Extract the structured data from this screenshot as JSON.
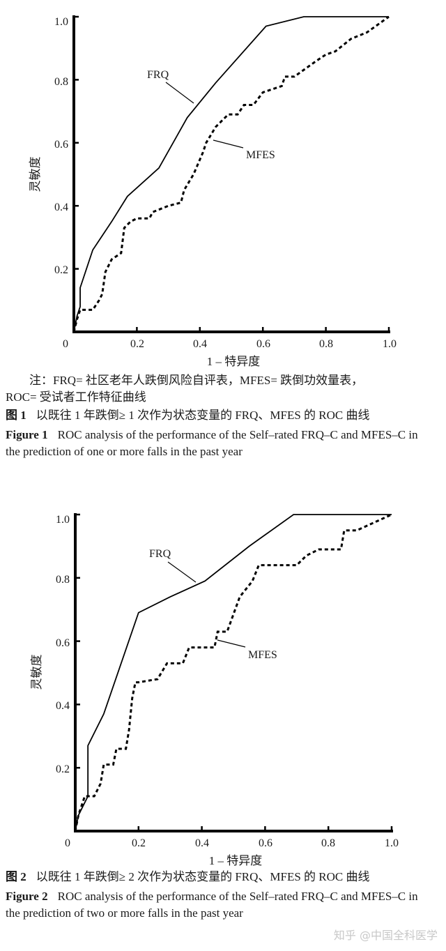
{
  "chart_data": [
    {
      "type": "line",
      "title": "ROC analysis — one or more falls in the past year",
      "xlabel": "1 – 特异度",
      "ylabel": "灵敏度",
      "xlim": [
        0,
        1.0
      ],
      "ylim": [
        0,
        1.0
      ],
      "xticks": [
        "0",
        "0.2",
        "0.4",
        "0.6",
        "0.8",
        "1.0"
      ],
      "yticks": [
        "0.2",
        "0.4",
        "0.6",
        "0.8",
        "1.0"
      ],
      "grid": false,
      "legend": "inline annotations",
      "series": [
        {
          "name": "FRQ",
          "style": "solid",
          "x": [
            0,
            0.01,
            0.02,
            0.02,
            0.06,
            0.12,
            0.17,
            0.27,
            0.36,
            0.45,
            0.61,
            0.73,
            1.0
          ],
          "y": [
            0,
            0.05,
            0.08,
            0.14,
            0.26,
            0.35,
            0.43,
            0.52,
            0.68,
            0.79,
            0.97,
            1.0,
            1.0
          ]
        },
        {
          "name": "MFES",
          "style": "dashed",
          "x": [
            0,
            0.01,
            0.02,
            0.06,
            0.08,
            0.09,
            0.1,
            0.12,
            0.15,
            0.16,
            0.18,
            0.2,
            0.24,
            0.25,
            0.3,
            0.34,
            0.35,
            0.38,
            0.41,
            0.42,
            0.45,
            0.49,
            0.52,
            0.54,
            0.57,
            0.6,
            0.63,
            0.66,
            0.67,
            0.7,
            0.77,
            0.8,
            0.83,
            0.88,
            0.93,
            1.0
          ],
          "y": [
            0,
            0.04,
            0.07,
            0.07,
            0.1,
            0.12,
            0.19,
            0.23,
            0.25,
            0.33,
            0.35,
            0.36,
            0.36,
            0.38,
            0.4,
            0.41,
            0.45,
            0.5,
            0.57,
            0.6,
            0.65,
            0.69,
            0.69,
            0.72,
            0.72,
            0.76,
            0.77,
            0.78,
            0.81,
            0.81,
            0.86,
            0.88,
            0.89,
            0.93,
            0.95,
            1.0
          ]
        }
      ],
      "annotations": [
        "FRQ",
        "MFES"
      ]
    },
    {
      "type": "line",
      "title": "ROC analysis — two or more falls in the past year",
      "xlabel": "1 – 特异度",
      "ylabel": "灵敏度",
      "xlim": [
        0,
        1.0
      ],
      "ylim": [
        0,
        1.0
      ],
      "xticks": [
        "0",
        "0.2",
        "0.4",
        "0.6",
        "0.8",
        "1.0"
      ],
      "yticks": [
        "0.2",
        "0.4",
        "0.6",
        "0.8",
        "1.0"
      ],
      "grid": false,
      "legend": "inline annotations",
      "series": [
        {
          "name": "FRQ",
          "style": "solid",
          "x": [
            0,
            0.01,
            0.04,
            0.04,
            0.09,
            0.2,
            0.3,
            0.41,
            0.55,
            0.69,
            1.0
          ],
          "y": [
            0,
            0.05,
            0.11,
            0.27,
            0.37,
            0.69,
            0.74,
            0.79,
            0.9,
            1.0,
            1.0
          ]
        },
        {
          "name": "MFES",
          "style": "dashed",
          "x": [
            0,
            0.01,
            0.03,
            0.06,
            0.08,
            0.09,
            0.12,
            0.13,
            0.16,
            0.17,
            0.18,
            0.19,
            0.2,
            0.26,
            0.29,
            0.34,
            0.36,
            0.38,
            0.44,
            0.45,
            0.48,
            0.52,
            0.56,
            0.58,
            0.6,
            0.7,
            0.73,
            0.77,
            0.84,
            0.85,
            0.89,
            1.0
          ],
          "y": [
            0,
            0.05,
            0.11,
            0.11,
            0.15,
            0.21,
            0.21,
            0.26,
            0.26,
            0.32,
            0.42,
            0.47,
            0.47,
            0.48,
            0.53,
            0.53,
            0.58,
            0.58,
            0.58,
            0.63,
            0.63,
            0.74,
            0.79,
            0.84,
            0.84,
            0.84,
            0.87,
            0.89,
            0.89,
            0.95,
            0.95,
            1.0
          ]
        }
      ],
      "annotations": [
        "FRQ",
        "MFES"
      ]
    }
  ],
  "figure1": {
    "y_axis_label": "灵敏度",
    "x_axis_label": "1 – 特异度",
    "x_ticks": [
      "0",
      "0.2",
      "0.4",
      "0.6",
      "0.8",
      "1.0"
    ],
    "y_ticks": [
      "0.2",
      "0.4",
      "0.6",
      "0.8",
      "1.0"
    ],
    "annotation_frq": "FRQ",
    "annotation_mfes": "MFES",
    "note_line1": "注：FRQ= 社区老年人跌倒风险自评表，MFES= 跌倒功效量表，",
    "note_line2": "ROC= 受试者工作特征曲线",
    "cn_label": "图 1",
    "cn_caption": "以既往 1 年跌倒≥ 1 次作为状态变量的 FRQ、MFES 的 ROC 曲线",
    "en_label": "Figure 1",
    "en_caption": "ROC analysis of the performance of the Self–rated FRQ–C and MFES–C in the prediction of one or more falls in the past year"
  },
  "figure2": {
    "y_axis_label": "灵敏度",
    "x_axis_label": "1 – 特异度",
    "x_ticks": [
      "0",
      "0.2",
      "0.4",
      "0.6",
      "0.8",
      "1.0"
    ],
    "y_ticks": [
      "0.2",
      "0.4",
      "0.6",
      "0.8",
      "1.0"
    ],
    "annotation_frq": "FRQ",
    "annotation_mfes": "MFES",
    "cn_label": "图 2",
    "cn_caption": "以既往 1 年跌倒≥ 2 次作为状态变量的 FRQ、MFES 的 ROC 曲线",
    "en_label": "Figure 2",
    "en_caption": "ROC analysis of the performance of the Self–rated FRQ–C and MFES–C in the prediction of two or more falls in the past year"
  },
  "watermark": "知乎 @中国全科医学"
}
